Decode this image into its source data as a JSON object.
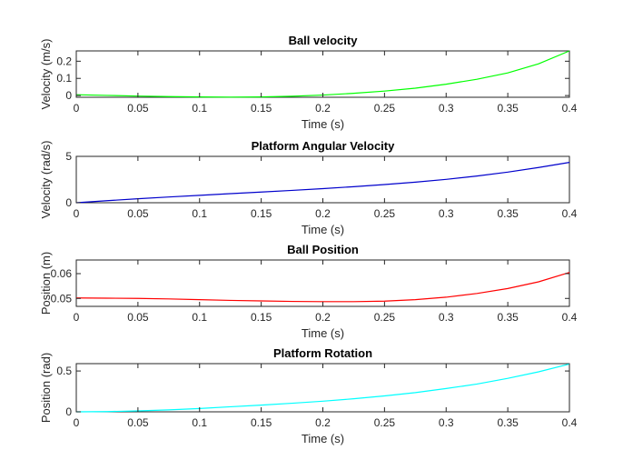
{
  "chart_data": [
    {
      "type": "line",
      "title": "Ball velocity",
      "xlabel": "Time (s)",
      "ylabel": "Velocity (m/s)",
      "xlim": [
        0,
        0.4
      ],
      "ylim": [
        -0.01,
        0.26
      ],
      "xticks": [
        0,
        0.05,
        0.1,
        0.15,
        0.2,
        0.25,
        0.3,
        0.35,
        0.4
      ],
      "xtick_labels": [
        "0",
        "0.05",
        "0.1",
        "0.15",
        "0.2",
        "0.25",
        "0.3",
        "0.35",
        "0.4"
      ],
      "yticks": [
        0,
        0.1,
        0.2
      ],
      "ytick_labels": [
        "0",
        "0.1",
        "0.2"
      ],
      "series": [
        {
          "color": "#00ff00",
          "x": [
            0,
            0.025,
            0.05,
            0.075,
            0.1,
            0.125,
            0.15,
            0.175,
            0.2,
            0.225,
            0.25,
            0.275,
            0.3,
            0.325,
            0.35,
            0.375,
            0.4
          ],
          "y": [
            0.005,
            0.001,
            -0.003,
            -0.006,
            -0.008,
            -0.009,
            -0.008,
            -0.004,
            0.003,
            0.013,
            0.026,
            0.043,
            0.066,
            0.095,
            0.132,
            0.185,
            0.26
          ]
        }
      ]
    },
    {
      "type": "line",
      "title": "Platform Angular Velocity",
      "xlabel": "Time (s)",
      "ylabel": "Velocity (rad/s)",
      "xlim": [
        0,
        0.4
      ],
      "ylim": [
        0,
        5
      ],
      "xticks": [
        0,
        0.05,
        0.1,
        0.15,
        0.2,
        0.25,
        0.3,
        0.35,
        0.4
      ],
      "xtick_labels": [
        "0",
        "0.05",
        "0.1",
        "0.15",
        "0.2",
        "0.25",
        "0.3",
        "0.35",
        "0.4"
      ],
      "yticks": [
        0,
        5
      ],
      "ytick_labels": [
        "0",
        "5"
      ],
      "series": [
        {
          "color": "#0000cc",
          "x": [
            0,
            0.025,
            0.05,
            0.075,
            0.1,
            0.125,
            0.15,
            0.175,
            0.2,
            0.225,
            0.25,
            0.275,
            0.3,
            0.325,
            0.35,
            0.375,
            0.4
          ],
          "y": [
            0,
            0.22,
            0.43,
            0.62,
            0.8,
            0.98,
            1.15,
            1.33,
            1.52,
            1.73,
            1.96,
            2.22,
            2.52,
            2.88,
            3.3,
            3.8,
            4.35
          ]
        }
      ]
    },
    {
      "type": "line",
      "title": "Ball Position",
      "xlabel": "Time (s)",
      "ylabel": "Position (m)",
      "xlim": [
        0,
        0.4
      ],
      "ylim": [
        0.0468,
        0.0655
      ],
      "xticks": [
        0,
        0.05,
        0.1,
        0.15,
        0.2,
        0.25,
        0.3,
        0.35,
        0.4
      ],
      "xtick_labels": [
        "0",
        "0.05",
        "0.1",
        "0.15",
        "0.2",
        "0.25",
        "0.3",
        "0.35",
        "0.4"
      ],
      "yticks": [
        0.05,
        0.06
      ],
      "ytick_labels": [
        "0.05",
        "0.06"
      ],
      "series": [
        {
          "color": "#ff0000",
          "x": [
            0,
            0.025,
            0.05,
            0.075,
            0.1,
            0.125,
            0.15,
            0.175,
            0.2,
            0.225,
            0.25,
            0.275,
            0.3,
            0.325,
            0.35,
            0.375,
            0.4
          ],
          "y": [
            0.0502,
            0.0501,
            0.05,
            0.0498,
            0.0495,
            0.0492,
            0.049,
            0.0488,
            0.0487,
            0.0487,
            0.0489,
            0.0495,
            0.0505,
            0.052,
            0.054,
            0.0567,
            0.0605
          ]
        }
      ]
    },
    {
      "type": "line",
      "title": "Platform Rotation",
      "xlabel": "Time (s)",
      "ylabel": "Position (rad)",
      "xlim": [
        0,
        0.4
      ],
      "ylim": [
        0,
        0.59
      ],
      "xticks": [
        0,
        0.05,
        0.1,
        0.15,
        0.2,
        0.25,
        0.3,
        0.35,
        0.4
      ],
      "xtick_labels": [
        "0",
        "0.05",
        "0.1",
        "0.15",
        "0.2",
        "0.25",
        "0.3",
        "0.35",
        "0.4"
      ],
      "yticks": [
        0,
        0.5
      ],
      "ytick_labels": [
        "0",
        "0.5"
      ],
      "series": [
        {
          "color": "#00ffff",
          "x": [
            0,
            0.025,
            0.05,
            0.075,
            0.1,
            0.125,
            0.15,
            0.175,
            0.2,
            0.225,
            0.25,
            0.275,
            0.3,
            0.325,
            0.35,
            0.375,
            0.4
          ],
          "y": [
            0,
            0.003,
            0.011,
            0.024,
            0.04,
            0.062,
            0.082,
            0.105,
            0.13,
            0.16,
            0.195,
            0.235,
            0.285,
            0.34,
            0.41,
            0.49,
            0.585
          ]
        }
      ]
    }
  ]
}
